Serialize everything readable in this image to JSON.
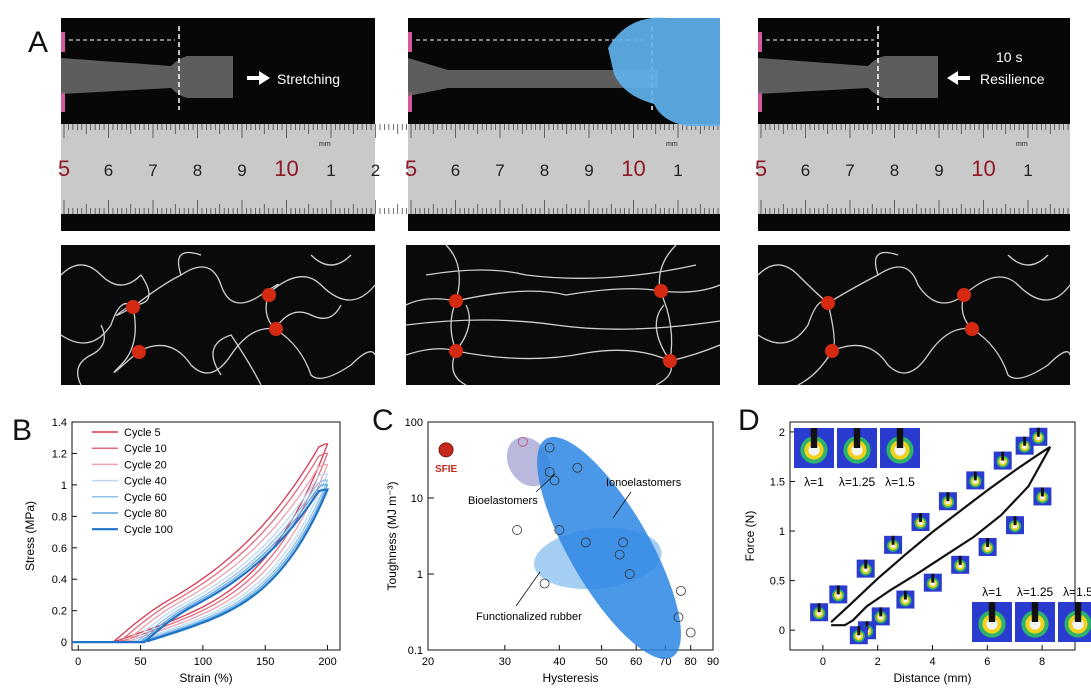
{
  "panels": {
    "A": "A",
    "B": "B",
    "C": "C",
    "D": "D"
  },
  "photos": [
    {
      "action": "Stretching",
      "arrow": "right",
      "time": ""
    },
    {
      "action": "",
      "arrow": "",
      "time": ""
    },
    {
      "action": "Resilience",
      "arrow": "left",
      "time": "10 s"
    }
  ],
  "ruler": {
    "unit": "mm",
    "labels_1": [
      "5",
      "6",
      "7",
      "8",
      "9",
      "10",
      "1",
      "2"
    ],
    "labels_2": [
      "5",
      "6",
      "7",
      "8",
      "9",
      "10",
      "1"
    ],
    "labels_3": [
      "5",
      "6",
      "7",
      "8",
      "9",
      "10",
      "1"
    ]
  },
  "colors": {
    "crosslink": "#d42a12",
    "chain": "#cfcfcf",
    "glove": "#5fb1ec"
  },
  "chart_data": [
    {
      "panel": "B",
      "type": "line",
      "xlabel": "Strain (%)",
      "ylabel": "Stress (MPa)",
      "xlim": [
        -5,
        210
      ],
      "ylim": [
        -0.05,
        1.4
      ],
      "xticks": [
        "0",
        "50",
        "100",
        "150",
        "200"
      ],
      "yticks": [
        "0",
        "0.2",
        "0.4",
        "0.6",
        "0.8",
        "1",
        "1.2",
        "1.4"
      ],
      "series": [
        {
          "name": "Cycle 5",
          "color": "#d63a52",
          "max": 1.26,
          "residual": 28
        },
        {
          "name": "Cycle 10",
          "color": "#e06b7e",
          "max": 1.2,
          "residual": 33
        },
        {
          "name": "Cycle 20",
          "color": "#eba2ad",
          "max": 1.13,
          "residual": 38
        },
        {
          "name": "Cycle 40",
          "color": "#bcd9f0",
          "max": 1.07,
          "residual": 43
        },
        {
          "name": "Cycle 60",
          "color": "#8ec2ea",
          "max": 1.03,
          "residual": 47
        },
        {
          "name": "Cycle 80",
          "color": "#5aa4e0",
          "max": 1.0,
          "residual": 50
        },
        {
          "name": "Cycle 100",
          "color": "#1f73c6",
          "max": 0.97,
          "residual": 53
        }
      ]
    },
    {
      "panel": "C",
      "type": "scatter",
      "xlabel": "Hysteresis",
      "ylabel": "Toughness (MJ m⁻³)",
      "xlim": [
        20,
        90
      ],
      "ylim": [
        0.1,
        100
      ],
      "xscale": "log",
      "yscale": "log",
      "xticks": [
        "20",
        "30",
        "40",
        "50",
        "60",
        "70",
        "80",
        "90"
      ],
      "yticks": [
        "0.1",
        "1",
        "10",
        "100"
      ],
      "highlight": {
        "label": "SFIE",
        "x": 22,
        "y": 43,
        "color": "#c8281c"
      },
      "groups": [
        {
          "name": "Bioelastomers",
          "points": [
            [
              33,
              55
            ]
          ]
        },
        {
          "name": "Ionoelastomers",
          "points": [
            [
              38,
              46
            ],
            [
              38,
              22
            ],
            [
              39,
              17
            ],
            [
              44,
              25
            ],
            [
              40,
              3.8
            ],
            [
              46,
              2.6
            ],
            [
              56,
              2.6
            ],
            [
              55,
              1.8
            ],
            [
              58,
              1.0
            ],
            [
              76,
              0.6
            ],
            [
              75,
              0.27
            ],
            [
              80,
              0.17
            ]
          ]
        },
        {
          "name": "Functionalized rubber",
          "points": [
            [
              32,
              3.8
            ],
            [
              37,
              0.75
            ]
          ]
        }
      ]
    },
    {
      "panel": "D",
      "type": "line",
      "xlabel": "Distance (mm)",
      "ylabel": "Force (N)",
      "xlim": [
        -1.2,
        9.2
      ],
      "ylim": [
        -0.2,
        2.1
      ],
      "xticks": [
        "0",
        "2",
        "4",
        "6",
        "8"
      ],
      "yticks": [
        "0",
        "0.5",
        "1",
        "1.5",
        "2"
      ],
      "loading": {
        "x": [
          0.3,
          1,
          2,
          3,
          4,
          5,
          6,
          7,
          7.8,
          8.3
        ],
        "y": [
          0.08,
          0.26,
          0.52,
          0.76,
          0.99,
          1.2,
          1.41,
          1.61,
          1.76,
          1.85
        ]
      },
      "unloading": {
        "x": [
          8.3,
          7.5,
          6.5,
          5.5,
          4.5,
          3.5,
          2.5,
          1.6,
          1.1,
          0.8,
          0.3
        ],
        "y": [
          1.85,
          1.45,
          1.16,
          0.94,
          0.76,
          0.58,
          0.41,
          0.24,
          0.1,
          0.05,
          0.05
        ]
      },
      "inset_labels_top": [
        "λ=1",
        "λ=1.25",
        "λ=1.5"
      ],
      "inset_labels_bottom": [
        "λ=1",
        "λ=1.25",
        "λ=1.5"
      ]
    }
  ]
}
